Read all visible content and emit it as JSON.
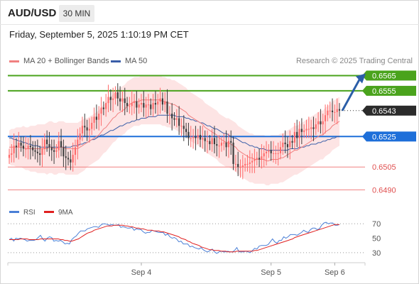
{
  "header": {
    "symbol": "AUD/USD",
    "timeframe": "30 MIN",
    "datetime": "Friday, September 5, 2025 1:10:19 PM CET",
    "legend_bollinger": "MA 20 + Bollinger Bands",
    "legend_ma50": "MA 50",
    "research": "Research © 2025 Trading Central"
  },
  "colors": {
    "up": "#ff6b6b",
    "down": "#3c3c3c",
    "ma20": "#f08080",
    "band_fill": "#fde4e4",
    "ma50": "#3a5ea8",
    "resistance": "#4aa31c",
    "pivot": "#1e6fd9",
    "support": "#f08080",
    "rsi": "#4a7fd6",
    "rsi_ma": "#e02020",
    "arrow": "#2b5ea8"
  },
  "chart_data": [
    {
      "type": "candlestick",
      "title": "AUD/USD 30 MIN",
      "ylim": [
        0.6486,
        0.6568
      ],
      "x_tick_labels": [
        "Sep 4",
        "Sep 5",
        "Sep 6"
      ],
      "x_tick_index": [
        56,
        111,
        138
      ],
      "last_price": "0.6543",
      "levels": [
        {
          "value": 0.6565,
          "label": "0.6565",
          "kind": "resistance"
        },
        {
          "value": 0.6555,
          "label": "0.6555",
          "kind": "resistance"
        },
        {
          "value": 0.6525,
          "label": "0.6525",
          "kind": "pivot"
        },
        {
          "value": 0.6505,
          "label": "0.6505",
          "kind": "support"
        },
        {
          "value": 0.649,
          "label": "0.6490",
          "kind": "support"
        }
      ],
      "forecast_arrow": {
        "from_index": 140,
        "from_value": 0.6542,
        "to_value": 0.6565
      },
      "closes": [
        0.6513,
        0.6514,
        0.6519,
        0.6518,
        0.6521,
        0.6519,
        0.6517,
        0.6517,
        0.6519,
        0.6518,
        0.6516,
        0.6515,
        0.6514,
        0.6513,
        0.6517,
        0.6523,
        0.652,
        0.6518,
        0.6516,
        0.6515,
        0.6516,
        0.6522,
        0.6518,
        0.6512,
        0.6511,
        0.651,
        0.6508,
        0.6513,
        0.6518,
        0.6523,
        0.6527,
        0.6532,
        0.6531,
        0.6529,
        0.653,
        0.6534,
        0.6538,
        0.6536,
        0.654,
        0.6544,
        0.6543,
        0.6547,
        0.6551,
        0.6549,
        0.655,
        0.6554,
        0.655,
        0.6548,
        0.655,
        0.6547,
        0.6545,
        0.6545,
        0.6547,
        0.6548,
        0.6544,
        0.6546,
        0.6547,
        0.6544,
        0.6546,
        0.6546,
        0.6543,
        0.6547,
        0.6546,
        0.6548,
        0.655,
        0.6546,
        0.6548,
        0.654,
        0.654,
        0.6537,
        0.6536,
        0.6537,
        0.6532,
        0.6532,
        0.653,
        0.6528,
        0.6524,
        0.6524,
        0.6525,
        0.6524,
        0.6526,
        0.6523,
        0.6524,
        0.6522,
        0.6522,
        0.652,
        0.6524,
        0.652,
        0.6519,
        0.6519,
        0.6521,
        0.6521,
        0.6518,
        0.6522,
        0.6521,
        0.6507,
        0.6507,
        0.6505,
        0.6505,
        0.6506,
        0.6507,
        0.6507,
        0.6508,
        0.6509,
        0.651,
        0.6511,
        0.651,
        0.6512,
        0.6514,
        0.6515,
        0.6516,
        0.6514,
        0.6514,
        0.6514,
        0.6514,
        0.6518,
        0.6521,
        0.652,
        0.6518,
        0.6522,
        0.6521,
        0.6528,
        0.6524,
        0.653,
        0.6528,
        0.6529,
        0.653,
        0.653,
        0.6531,
        0.653,
        0.6533,
        0.6535,
        0.6533,
        0.6535,
        0.6539,
        0.6542,
        0.6542,
        0.6541,
        0.6541,
        0.6543,
        0.6542
      ],
      "ma20": [
        0.6518,
        0.6518,
        0.6518,
        0.6518,
        0.6518,
        0.6518,
        0.6518,
        0.6517,
        0.6517,
        0.6517,
        0.6517,
        0.6517,
        0.6517,
        0.6517,
        0.6517,
        0.6517,
        0.6517,
        0.6518,
        0.6518,
        0.6517,
        0.6517,
        0.6518,
        0.6518,
        0.6518,
        0.6517,
        0.6517,
        0.6517,
        0.6517,
        0.6517,
        0.6517,
        0.6518,
        0.6519,
        0.652,
        0.6521,
        0.6522,
        0.6523,
        0.6524,
        0.6525,
        0.6526,
        0.6528,
        0.653,
        0.6531,
        0.6533,
        0.6535,
        0.6537,
        0.6538,
        0.654,
        0.6541,
        0.6542,
        0.6543,
        0.6545,
        0.6546,
        0.6547,
        0.6548,
        0.6548,
        0.6548,
        0.6549,
        0.6549,
        0.6549,
        0.6549,
        0.6549,
        0.6549,
        0.6549,
        0.6549,
        0.6549,
        0.6548,
        0.6548,
        0.6547,
        0.6547,
        0.6546,
        0.6546,
        0.6545,
        0.6544,
        0.6543,
        0.6542,
        0.6541,
        0.6539,
        0.6538,
        0.6537,
        0.6536,
        0.6535,
        0.6534,
        0.6533,
        0.6531,
        0.653,
        0.6529,
        0.6528,
        0.6527,
        0.6526,
        0.6524,
        0.6523,
        0.6522,
        0.6521,
        0.6521,
        0.652,
        0.6519,
        0.6518,
        0.6516,
        0.6515,
        0.6514,
        0.6513,
        0.6512,
        0.6511,
        0.6511,
        0.651,
        0.651,
        0.651,
        0.651,
        0.651,
        0.6509,
        0.6509,
        0.651,
        0.651,
        0.651,
        0.651,
        0.6511,
        0.6511,
        0.6512,
        0.6513,
        0.6514,
        0.6515,
        0.6516,
        0.6516,
        0.6517,
        0.6518,
        0.6519,
        0.652,
        0.6521,
        0.6522,
        0.6523,
        0.6524,
        0.6525,
        0.6526,
        0.6526,
        0.6528,
        0.6529,
        0.653,
        0.6532,
        0.6533,
        0.6534,
        0.6535
      ],
      "ma50": [
        0.6524,
        0.6524,
        0.6523,
        0.6523,
        0.6522,
        0.6522,
        0.6521,
        0.6521,
        0.652,
        0.652,
        0.6519,
        0.6519,
        0.6519,
        0.6518,
        0.6518,
        0.6518,
        0.6518,
        0.6518,
        0.6518,
        0.6518,
        0.6518,
        0.6518,
        0.6518,
        0.6518,
        0.6518,
        0.6518,
        0.6518,
        0.6519,
        0.6519,
        0.6519,
        0.652,
        0.652,
        0.6521,
        0.6521,
        0.6522,
        0.6523,
        0.6523,
        0.6524,
        0.6525,
        0.6526,
        0.6526,
        0.6527,
        0.6528,
        0.6529,
        0.6529,
        0.653,
        0.6531,
        0.6532,
        0.6532,
        0.6533,
        0.6534,
        0.6534,
        0.6535,
        0.6535,
        0.6536,
        0.6536,
        0.6537,
        0.6537,
        0.6537,
        0.6538,
        0.6538,
        0.6538,
        0.6538,
        0.6539,
        0.6539,
        0.6539,
        0.6539,
        0.6539,
        0.6539,
        0.6539,
        0.6539,
        0.6538,
        0.6538,
        0.6538,
        0.6538,
        0.6537,
        0.6537,
        0.6536,
        0.6536,
        0.6535,
        0.6535,
        0.6534,
        0.6534,
        0.6533,
        0.6532,
        0.6532,
        0.6531,
        0.653,
        0.653,
        0.6529,
        0.6528,
        0.6527,
        0.6527,
        0.6526,
        0.6525,
        0.6524,
        0.6524,
        0.6523,
        0.6522,
        0.6521,
        0.6521,
        0.652,
        0.6519,
        0.6519,
        0.6518,
        0.6518,
        0.6517,
        0.6517,
        0.6517,
        0.6516,
        0.6516,
        0.6516,
        0.6516,
        0.6516,
        0.6516,
        0.6516,
        0.6516,
        0.6516,
        0.6516,
        0.6517,
        0.6517,
        0.6517,
        0.6517,
        0.6518,
        0.6518,
        0.6518,
        0.6519,
        0.6519,
        0.652,
        0.652,
        0.652,
        0.6521,
        0.6521,
        0.6522,
        0.6522,
        0.6523,
        0.6523,
        0.6524,
        0.6524,
        0.6525,
        0.6525
      ],
      "band_width": [
        0.0011,
        0.0012,
        0.0012,
        0.0013,
        0.0013,
        0.0013,
        0.0014,
        0.0014,
        0.0014,
        0.0015,
        0.0015,
        0.0015,
        0.0016,
        0.0016,
        0.0016,
        0.0016,
        0.0017,
        0.0017,
        0.0017,
        0.0017,
        0.0017,
        0.0017,
        0.0017,
        0.0017,
        0.0017,
        0.0017,
        0.0017,
        0.0017,
        0.0017,
        0.0017,
        0.0017,
        0.0017,
        0.0017,
        0.0016,
        0.0016,
        0.0016,
        0.0016,
        0.0016,
        0.0016,
        0.0016,
        0.0016,
        0.0016,
        0.0016,
        0.0016,
        0.0016,
        0.0016,
        0.0016,
        0.0016,
        0.0016,
        0.0016,
        0.0016,
        0.0016,
        0.0016,
        0.0016,
        0.0016,
        0.0016,
        0.0016,
        0.0016,
        0.0016,
        0.0016,
        0.0016,
        0.0016,
        0.0016,
        0.0016,
        0.0016,
        0.0016,
        0.0016,
        0.0016,
        0.0016,
        0.0016,
        0.0016,
        0.0016,
        0.0016,
        0.0016,
        0.0016,
        0.0016,
        0.0016,
        0.0016,
        0.0016,
        0.0016,
        0.0016,
        0.0016,
        0.0016,
        0.0016,
        0.0016,
        0.0016,
        0.0016,
        0.0016,
        0.0016,
        0.0016,
        0.0016,
        0.0016,
        0.0016,
        0.0016,
        0.0016,
        0.0016,
        0.0016,
        0.0016,
        0.0016,
        0.0016,
        0.0016,
        0.0016,
        0.0016,
        0.0016,
        0.0016,
        0.0016,
        0.0016,
        0.0016,
        0.0016,
        0.0016,
        0.0016,
        0.0016,
        0.0016,
        0.0016,
        0.0016,
        0.0016,
        0.0016,
        0.0016,
        0.0016,
        0.0016,
        0.0016,
        0.0016,
        0.0016,
        0.0016,
        0.0016,
        0.0016,
        0.0016,
        0.0016,
        0.0016,
        0.0016,
        0.0016,
        0.0016,
        0.0016,
        0.0016,
        0.0016,
        0.0016,
        0.0016,
        0.0016,
        0.0016,
        0.0016,
        0.0016
      ]
    },
    {
      "type": "line",
      "title": "RSI",
      "ylim": [
        20,
        80
      ],
      "y_ticks": [
        70,
        50,
        30
      ],
      "dotted_levels": [
        70,
        30
      ],
      "series": [
        {
          "name": "RSI",
          "values": [
            48,
            50,
            46,
            50,
            49,
            50,
            49,
            48,
            46,
            47,
            47,
            47,
            48,
            51,
            54,
            49,
            46,
            50,
            52,
            51,
            46,
            47,
            46,
            47,
            45,
            42,
            43,
            42,
            48,
            51,
            53,
            57,
            60,
            60,
            60,
            63,
            64,
            65,
            66,
            66,
            65,
            68,
            70,
            70,
            69,
            68,
            69,
            68,
            68,
            69,
            65,
            66,
            65,
            64,
            64,
            65,
            61,
            63,
            62,
            62,
            59,
            57,
            58,
            58,
            61,
            60,
            59,
            58,
            58,
            58,
            54,
            56,
            52,
            50,
            51,
            49,
            45,
            46,
            42,
            42,
            42,
            38,
            39,
            37,
            36,
            35,
            37,
            34,
            32,
            31,
            33,
            35,
            31,
            29,
            31,
            32,
            31,
            31,
            32,
            31,
            31,
            33,
            37,
            31,
            31,
            31,
            32,
            31,
            30,
            33,
            36,
            35,
            39,
            40,
            40,
            40,
            41,
            45,
            49,
            45,
            43,
            47,
            47,
            52,
            50,
            52,
            55,
            55,
            55,
            54,
            56,
            58,
            61,
            59,
            58,
            62,
            64,
            64,
            62,
            63,
            68,
            71,
            72,
            70,
            71,
            71,
            68,
            68,
            69
          ]
        },
        {
          "name": "9MA",
          "values": [
            48,
            48,
            48,
            48,
            48,
            49,
            49,
            49,
            49,
            48,
            48,
            48,
            48,
            48,
            49,
            49,
            49,
            49,
            49,
            49,
            49,
            49,
            49,
            48,
            48,
            47,
            47,
            46,
            46,
            47,
            48,
            49,
            51,
            53,
            55,
            57,
            58,
            59,
            61,
            62,
            63,
            64,
            65,
            66,
            67,
            67,
            67,
            68,
            68,
            68,
            68,
            68,
            67,
            67,
            66,
            66,
            65,
            64,
            64,
            63,
            63,
            62,
            61,
            61,
            61,
            60,
            60,
            60,
            59,
            59,
            58,
            57,
            56,
            55,
            54,
            53,
            52,
            50,
            49,
            48,
            46,
            45,
            43,
            42,
            41,
            40,
            38,
            37,
            36,
            35,
            34,
            34,
            33,
            33,
            33,
            32,
            32,
            32,
            31,
            31,
            31,
            31,
            32,
            32,
            32,
            32,
            32,
            32,
            32,
            32,
            33,
            33,
            34,
            35,
            36,
            37,
            38,
            39,
            40,
            41,
            42,
            43,
            44,
            45,
            46,
            47,
            48,
            49,
            51,
            52,
            53,
            54,
            55,
            56,
            57,
            58,
            59,
            60,
            61,
            62,
            63,
            64,
            65,
            66,
            67,
            68,
            69,
            69,
            69
          ]
        }
      ]
    }
  ]
}
